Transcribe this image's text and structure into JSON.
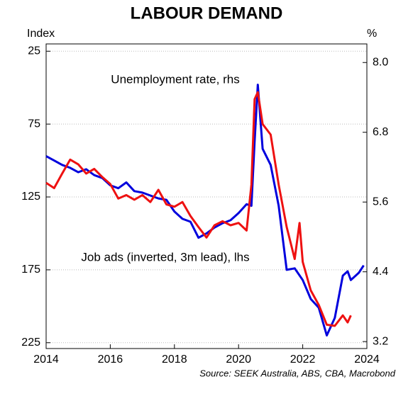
{
  "chart_data": {
    "type": "line",
    "title": "LABOUR DEMAND",
    "y_label": "Index",
    "y2_label": "%",
    "source": "Source: SEEK Australia, ABS, CBA, Macrobond",
    "annotations": [
      {
        "text": "Unemployment rate, rhs",
        "color": "#ee1111"
      },
      {
        "text": "Job ads (inverted, 3m lead), lhs",
        "color": "#0000dd"
      }
    ],
    "xlim": [
      2014,
      2024
    ],
    "xticks": [
      2014,
      2016,
      2018,
      2020,
      2022,
      2024
    ],
    "ylim": [
      229,
      20
    ],
    "yticks": [
      25,
      75,
      125,
      175,
      225
    ],
    "y2lim": [
      3.08,
      8.32
    ],
    "y2ticks": [
      {
        "value": 3.2,
        "label": "3.2"
      },
      {
        "value": 4.4,
        "label": "4.4"
      },
      {
        "value": 5.6,
        "label": "5.6"
      },
      {
        "value": 6.8,
        "label": "6.8"
      },
      {
        "value": 8.0,
        "label": "8.0"
      }
    ],
    "grid": true,
    "series": [
      {
        "name": "Job ads (inverted, 3m lead), lhs",
        "color": "#0000dd",
        "axis": "y",
        "x": [
          2014.0,
          2014.25,
          2014.5,
          2014.75,
          2015.0,
          2015.25,
          2015.5,
          2015.75,
          2016.0,
          2016.25,
          2016.5,
          2016.75,
          2017.0,
          2017.25,
          2017.5,
          2017.75,
          2018.0,
          2018.25,
          2018.5,
          2018.75,
          2019.0,
          2019.25,
          2019.5,
          2019.75,
          2020.0,
          2020.25,
          2020.4,
          2020.5,
          2020.6,
          2020.75,
          2021.0,
          2021.25,
          2021.5,
          2021.75,
          2022.0,
          2022.25,
          2022.5,
          2022.75,
          2023.0,
          2023.25,
          2023.4,
          2023.5,
          2023.75,
          2023.9
        ],
        "values": [
          97,
          100,
          103,
          105,
          108,
          106,
          110,
          112,
          117,
          119,
          115,
          121,
          122,
          124,
          126,
          127,
          135,
          140,
          142,
          153,
          150,
          146,
          143,
          141,
          136,
          130,
          131,
          87,
          48,
          92,
          103,
          131,
          175,
          174,
          182,
          195,
          201,
          220,
          208,
          179,
          176,
          182,
          177,
          172
        ]
      },
      {
        "name": "Unemployment rate, rhs",
        "color": "#ee1111",
        "axis": "y2",
        "x": [
          2014.0,
          2014.25,
          2014.5,
          2014.75,
          2015.0,
          2015.25,
          2015.5,
          2015.75,
          2016.0,
          2016.25,
          2016.5,
          2016.75,
          2017.0,
          2017.25,
          2017.5,
          2017.75,
          2018.0,
          2018.25,
          2018.5,
          2018.75,
          2019.0,
          2019.25,
          2019.5,
          2019.75,
          2020.0,
          2020.25,
          2020.4,
          2020.5,
          2020.6,
          2020.75,
          2021.0,
          2021.25,
          2021.5,
          2021.75,
          2021.9,
          2022.0,
          2022.25,
          2022.5,
          2022.75,
          2023.0,
          2023.25,
          2023.4,
          2023.5
        ],
        "values": [
          5.93,
          5.84,
          6.09,
          6.33,
          6.25,
          6.09,
          6.17,
          6.03,
          5.91,
          5.66,
          5.72,
          5.64,
          5.72,
          5.6,
          5.81,
          5.56,
          5.52,
          5.6,
          5.36,
          5.17,
          4.99,
          5.2,
          5.27,
          5.2,
          5.24,
          5.11,
          5.9,
          7.37,
          7.49,
          6.94,
          6.76,
          5.9,
          5.17,
          4.62,
          5.24,
          4.57,
          4.08,
          3.83,
          3.49,
          3.47,
          3.65,
          3.53,
          3.65
        ]
      }
    ]
  }
}
